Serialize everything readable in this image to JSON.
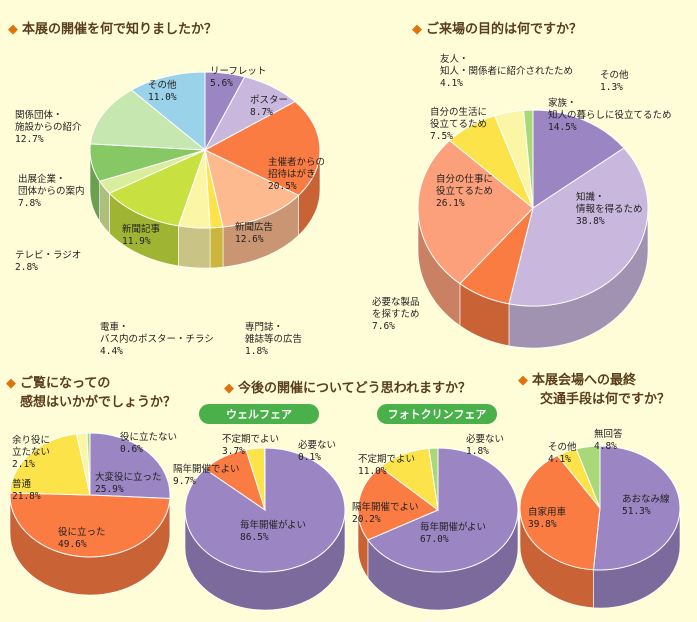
{
  "headers": {
    "h1": "本展の開催を何で知りましたか？",
    "h2": "ご来場の目的は何ですか？",
    "h3_line1": "ご覧になっての",
    "h3_line2": "感想はいかがでしょうか？",
    "h4": "今後の開催についてどう思われますか？",
    "h5_line1": "本展会場への最終",
    "h5_line2": "交通手段は何ですか？"
  },
  "pills": {
    "welfare": "ウェルフェア",
    "photo": "フォトクリンフェア"
  },
  "colors": {
    "background": "#fffdd8",
    "header_text": "#5a3e1b",
    "marker": "#e0730c",
    "pill": "#4ab04a",
    "purple": "#9b85c3",
    "lavender": "#c9b7de",
    "orange": "#fb7c43",
    "salmon": "#fca07b",
    "peach": "#fdba8e",
    "yellow": "#fce34a",
    "cream": "#fbf5a6",
    "lime": "#c8e141",
    "lightgreen": "#a8d878",
    "green": "#86c864",
    "palegreen": "#c6e8b0",
    "skyblue": "#9ad2ea"
  },
  "chart_data": [
    {
      "type": "pie",
      "title": "本展の開催を何で知りましたか？",
      "slices": [
        {
          "name": "リーフレット",
          "value": 5.6,
          "label": "5.6%",
          "color": "#9b85c3"
        },
        {
          "name": "ポスター",
          "value": 8.7,
          "label": "8.7%",
          "color": "#c9b7de"
        },
        {
          "name": "主催者からの招待はがき",
          "value": 20.5,
          "label": "20.5%",
          "color": "#fb7c43"
        },
        {
          "name": "新聞広告",
          "value": 12.6,
          "label": "12.6%",
          "color": "#fdba8e"
        },
        {
          "name": "専門誌・雑誌等の広告",
          "value": 1.8,
          "label": "1.8%",
          "color": "#fce34a"
        },
        {
          "name": "電車・バス内のポスター・チラシ",
          "value": 4.4,
          "label": "4.4%",
          "color": "#fbf5a6"
        },
        {
          "name": "新聞記事",
          "value": 11.9,
          "label": "11.9%",
          "color": "#c8e141"
        },
        {
          "name": "テレビ・ラジオ",
          "value": 2.8,
          "label": "2.8%",
          "color": "#d8ee9c"
        },
        {
          "name": "出展企業・団体からの案内",
          "value": 7.8,
          "label": "7.8%",
          "color": "#86c864"
        },
        {
          "name": "関係団体・施設からの紹介",
          "value": 12.7,
          "label": "12.7%",
          "color": "#c6e8b0"
        },
        {
          "name": "その他",
          "value": 11.0,
          "label": "11.0%",
          "color": "#9ad2ea"
        }
      ]
    },
    {
      "type": "pie",
      "title": "ご来場の目的は何ですか？",
      "slices": [
        {
          "name": "家族・知人の暮らしに役立てるため",
          "value": 14.5,
          "label": "14.5%",
          "color": "#9b85c3"
        },
        {
          "name": "知識・情報を得るため",
          "value": 38.8,
          "label": "38.8%",
          "color": "#c9b7de"
        },
        {
          "name": "必要な製品を探すため",
          "value": 7.6,
          "label": "7.6%",
          "color": "#fb7c43"
        },
        {
          "name": "自分の仕事に役立てるため",
          "value": 26.1,
          "label": "26.1%",
          "color": "#fca07b"
        },
        {
          "name": "自分の生活に役立てるため",
          "value": 7.5,
          "label": "7.5%",
          "color": "#fce34a"
        },
        {
          "name": "友人・知人・関係者に紹介されたため",
          "value": 4.1,
          "label": "4.1%",
          "color": "#fbf5a6"
        },
        {
          "name": "その他",
          "value": 1.3,
          "label": "1.3%",
          "color": "#a8d878"
        }
      ]
    },
    {
      "type": "pie",
      "title": "ご覧になっての感想はいかがでしょうか？",
      "slices": [
        {
          "name": "大変役に立った",
          "value": 25.9,
          "label": "25.9%",
          "color": "#9b85c3"
        },
        {
          "name": "役に立った",
          "value": 49.6,
          "label": "49.6%",
          "color": "#fb7c43"
        },
        {
          "name": "普通",
          "value": 21.8,
          "label": "21.8%",
          "color": "#fce34a"
        },
        {
          "name": "余り役に立たない",
          "value": 2.1,
          "label": "2.1%",
          "color": "#fbf5a6"
        },
        {
          "name": "役に立たない",
          "value": 0.6,
          "label": "0.6%",
          "color": "#a8d878"
        }
      ]
    },
    {
      "type": "pie",
      "title": "今後の開催についてどう思われますか？",
      "subtitle": "ウェルフェア",
      "slices": [
        {
          "name": "毎年開催がよい",
          "value": 86.5,
          "label": "86.5%",
          "color": "#9b85c3"
        },
        {
          "name": "隔年開催でよい",
          "value": 9.7,
          "label": "9.7%",
          "color": "#fb7c43"
        },
        {
          "name": "不定期でよい",
          "value": 3.7,
          "label": "3.7%",
          "color": "#fce34a"
        },
        {
          "name": "必要ない",
          "value": 0.1,
          "label": "0.1%",
          "color": "#a8d878"
        }
      ]
    },
    {
      "type": "pie",
      "title": "今後の開催についてどう思われますか？",
      "subtitle": "フォトクリンフェア",
      "slices": [
        {
          "name": "毎年開催がよい",
          "value": 67.0,
          "label": "67.0%",
          "color": "#9b85c3"
        },
        {
          "name": "隔年開催でよい",
          "value": 20.2,
          "label": "20.2%",
          "color": "#fb7c43"
        },
        {
          "name": "不定期でよい",
          "value": 11.0,
          "label": "11.0%",
          "color": "#fce34a"
        },
        {
          "name": "必要ない",
          "value": 1.8,
          "label": "1.8%",
          "color": "#a8d878"
        }
      ]
    },
    {
      "type": "pie",
      "title": "本展会場への最終交通手段は何ですか？",
      "slices": [
        {
          "name": "あおなみ線",
          "value": 51.3,
          "label": "51.3%",
          "color": "#9b85c3"
        },
        {
          "name": "自家用車",
          "value": 39.8,
          "label": "39.8%",
          "color": "#fb7c43"
        },
        {
          "name": "その他",
          "value": 4.1,
          "label": "4.1%",
          "color": "#fce34a"
        },
        {
          "name": "無回答",
          "value": 4.8,
          "label": "4.8%",
          "color": "#a8d878"
        }
      ]
    }
  ]
}
